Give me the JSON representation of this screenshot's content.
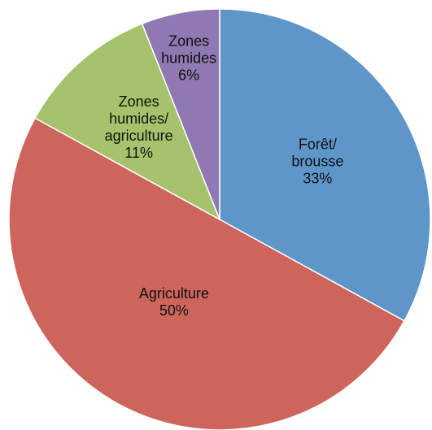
{
  "chart_data": {
    "type": "pie",
    "categories": [
      "Forêt/\nbrousse",
      "Agriculture",
      "Zones\nhumides/\nagriculture",
      "Zones\nhumides"
    ],
    "values": [
      33,
      50,
      11,
      6
    ],
    "value_labels": [
      "33%",
      "50%",
      "11%",
      "6%"
    ],
    "colors": [
      "#5e96c9",
      "#cd655d",
      "#a6c26c",
      "#9078b2"
    ]
  }
}
